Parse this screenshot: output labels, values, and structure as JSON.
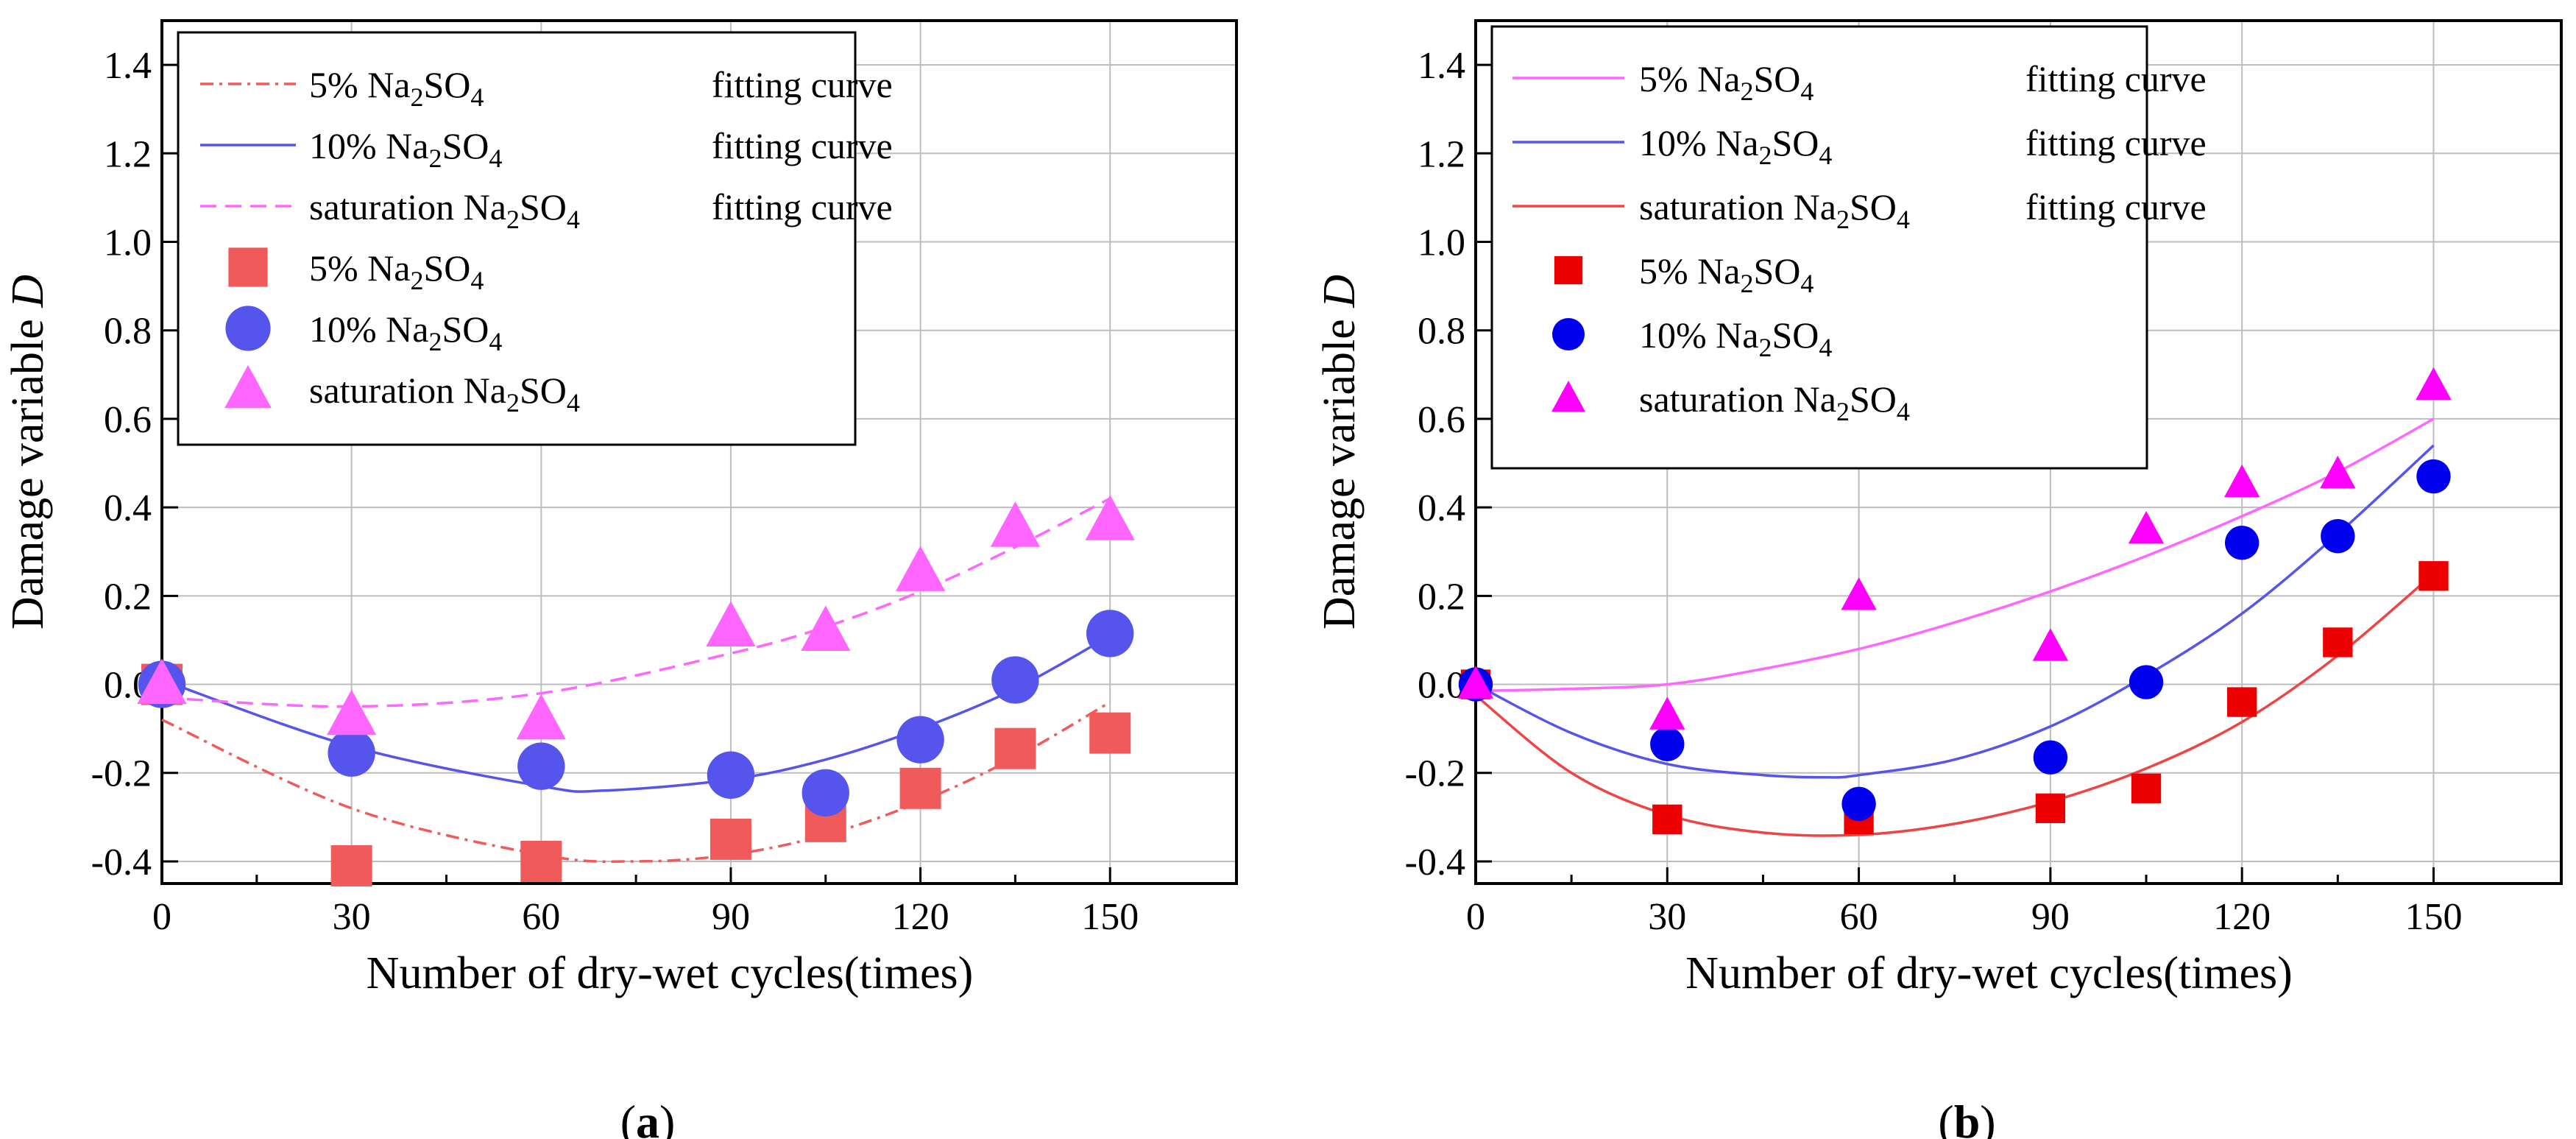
{
  "chart_data": [
    {
      "type": "scatter",
      "panel_label": "(a)",
      "xlabel": "Number of dry-wet cycles(times)",
      "ylabel": "Damage variable",
      "ylabel_italic": "D",
      "xlim": [
        0,
        170
      ],
      "ylim": [
        -0.45,
        1.5
      ],
      "xticks": [
        "0",
        "30",
        "60",
        "90",
        "120",
        "150"
      ],
      "yticks": [
        "-0.4",
        "-0.2",
        "0.0",
        "0.2",
        "0.4",
        "0.6",
        "0.8",
        "1.0",
        "1.2",
        "1.4"
      ],
      "x": [
        0,
        30,
        60,
        90,
        105,
        120,
        135,
        150
      ],
      "series": [
        {
          "name": "5% Na2SO4",
          "marker": "square",
          "color": "#f05a5a",
          "values": [
            0.0,
            -0.41,
            -0.4,
            -0.35,
            -0.31,
            -0.235,
            -0.145,
            -0.11
          ]
        },
        {
          "name": "10% Na2SO4",
          "marker": "circle",
          "color": "#5555ee",
          "values": [
            0.0,
            -0.155,
            -0.185,
            -0.205,
            -0.245,
            -0.125,
            0.01,
            0.115
          ]
        },
        {
          "name": "saturation Na2SO4",
          "marker": "triangle",
          "color": "#ff66ff",
          "values": [
            0.0,
            -0.07,
            -0.08,
            0.13,
            0.12,
            0.255,
            0.355,
            0.37
          ]
        }
      ],
      "fits": [
        {
          "name": "5% Na2SO4",
          "style": "dashdot",
          "color": "#f05a5a",
          "x": [
            0,
            30,
            60,
            75,
            90,
            105,
            120,
            135,
            150
          ],
          "y": [
            -0.08,
            -0.28,
            -0.385,
            -0.4,
            -0.385,
            -0.34,
            -0.265,
            -0.165,
            -0.04
          ]
        },
        {
          "name": "10% Na2SO4",
          "style": "solid",
          "color": "#5555ee",
          "x": [
            0,
            30,
            60,
            70,
            90,
            105,
            120,
            135,
            150
          ],
          "y": [
            0.01,
            -0.14,
            -0.23,
            -0.24,
            -0.215,
            -0.17,
            -0.1,
            -0.01,
            0.11
          ]
        },
        {
          "name": "saturation Na2SO4",
          "style": "dashed",
          "color": "#ff66ff",
          "x": [
            0,
            30,
            60,
            90,
            105,
            120,
            135,
            150
          ],
          "y": [
            -0.03,
            -0.05,
            -0.02,
            0.07,
            0.13,
            0.21,
            0.31,
            0.42
          ]
        }
      ],
      "legend": [
        {
          "kind": "line",
          "series": 0,
          "text": " 5% Na",
          "sub": "2",
          "text2": "SO",
          "sub2": "4",
          "tail": "fitting curve"
        },
        {
          "kind": "line",
          "series": 1,
          "text": "10% Na",
          "sub": "2",
          "text2": "SO",
          "sub2": "4",
          "tail": "fitting curve"
        },
        {
          "kind": "line",
          "series": 2,
          "text": "saturation Na",
          "sub": "2",
          "text2": "SO",
          "sub2": "4",
          "tail": "fitting curve"
        },
        {
          "kind": "marker",
          "series": 0,
          "text": "5% Na",
          "sub": "2",
          "text2": "SO",
          "sub2": "4",
          "tail": ""
        },
        {
          "kind": "marker",
          "series": 1,
          "text": "10% Na",
          "sub": "2",
          "text2": "SO",
          "sub2": "4",
          "tail": ""
        },
        {
          "kind": "marker",
          "series": 2,
          "text": "saturation Na",
          "sub": "2",
          "text2": "SO",
          "sub2": "4",
          "tail": ""
        }
      ]
    },
    {
      "type": "scatter",
      "panel_label": "(b)",
      "xlabel": "Number of dry-wet cycles(times)",
      "ylabel": "Damage variable",
      "ylabel_italic": "D",
      "xlim": [
        0,
        170
      ],
      "ylim": [
        -0.45,
        1.5
      ],
      "xticks": [
        "0",
        "30",
        "60",
        "90",
        "120",
        "150"
      ],
      "yticks": [
        "-0.4",
        "-0.2",
        "0.0",
        "0.2",
        "0.4",
        "0.6",
        "0.8",
        "1.0",
        "1.2",
        "1.4"
      ],
      "x": [
        0,
        30,
        60,
        90,
        105,
        120,
        135,
        150
      ],
      "series": [
        {
          "name": "5% Na2SO4",
          "marker": "square",
          "color": "#ee0000",
          "values": [
            0.0,
            -0.305,
            -0.305,
            -0.28,
            -0.235,
            -0.04,
            0.095,
            0.245
          ]
        },
        {
          "name": "10% Na2SO4",
          "marker": "circle",
          "color": "#0000ee",
          "values": [
            0.0,
            -0.135,
            -0.27,
            -0.165,
            0.005,
            0.32,
            0.335,
            0.47
          ]
        },
        {
          "name": "saturation Na2SO4",
          "marker": "triangle",
          "color": "#ff00ff",
          "values": [
            0.0,
            -0.07,
            0.2,
            0.085,
            0.35,
            0.455,
            0.475,
            0.675
          ]
        }
      ],
      "fits": [
        {
          "name": "5% Na2SO4",
          "style": "solid",
          "color": "#ff66ff",
          "x": [
            0,
            15,
            30,
            45,
            60,
            75,
            90,
            105,
            120,
            135,
            150
          ],
          "y": [
            -0.015,
            -0.01,
            0.0,
            0.035,
            0.08,
            0.14,
            0.21,
            0.29,
            0.38,
            0.48,
            0.6
          ]
        },
        {
          "name": "10% Na2SO4",
          "style": "solid",
          "color": "#5555ee",
          "x": [
            0,
            15,
            30,
            45,
            55,
            60,
            75,
            90,
            105,
            120,
            135,
            150
          ],
          "y": [
            0.0,
            -0.11,
            -0.18,
            -0.205,
            -0.21,
            -0.205,
            -0.17,
            -0.095,
            0.02,
            0.16,
            0.34,
            0.54
          ]
        },
        {
          "name": "saturation Na2SO4",
          "style": "solid",
          "color": "#ee4444",
          "x": [
            0,
            15,
            30,
            45,
            60,
            75,
            90,
            105,
            120,
            135,
            150
          ],
          "y": [
            -0.025,
            -0.2,
            -0.295,
            -0.335,
            -0.34,
            -0.315,
            -0.265,
            -0.19,
            -0.085,
            0.065,
            0.25
          ]
        }
      ],
      "legend": [
        {
          "kind": "line",
          "series": 0,
          "text": " 5% Na",
          "sub": "2",
          "text2": "SO",
          "sub2": "4",
          "tail": "fitting curve"
        },
        {
          "kind": "line",
          "series": 1,
          "text": "10% Na",
          "sub": "2",
          "text2": "SO",
          "sub2": "4",
          "tail": "fitting curve"
        },
        {
          "kind": "line",
          "series": 2,
          "text": "saturation Na",
          "sub": "2",
          "text2": "SO",
          "sub2": "4",
          "tail": "fitting curve"
        },
        {
          "kind": "marker",
          "series": 0,
          "text": "5% Na",
          "sub": "2",
          "text2": "SO",
          "sub2": "4",
          "tail": ""
        },
        {
          "kind": "marker",
          "series": 1,
          "text": "10% Na",
          "sub": "2",
          "text2": "SO",
          "sub2": "4",
          "tail": ""
        },
        {
          "kind": "marker",
          "series": 2,
          "text": "saturation Na",
          "sub": "2",
          "text2": "SO",
          "sub2": "4",
          "tail": ""
        }
      ]
    }
  ]
}
